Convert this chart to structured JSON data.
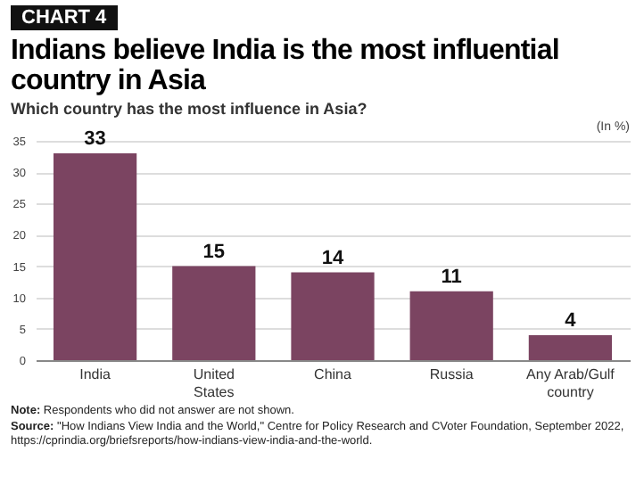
{
  "chart_data": {
    "type": "bar",
    "title": "Indians believe India is the most influential country in Asia",
    "subtitle": "Which country has the most influence in Asia?",
    "annotations": [
      "CHART 4",
      "(In %)",
      "Note: Respondents who did not answer are not shown.",
      "Source: \"How Indians View India and the World,\" Centre for Policy Research and CVoter Foundation, September 2022, https://cprindia.org/briefsreports/how-indians-view-india-and-the-world."
    ],
    "categories": [
      "India",
      "United States",
      "China",
      "Russia",
      "Any Arab/Gulf country"
    ],
    "values": [
      33,
      15,
      14,
      11,
      4
    ],
    "color": "#7b4461",
    "ylim": [
      0,
      35
    ],
    "yticks": [
      0,
      5,
      10,
      15,
      20,
      25,
      30,
      35
    ],
    "grid": "y",
    "data_labels": true
  }
}
